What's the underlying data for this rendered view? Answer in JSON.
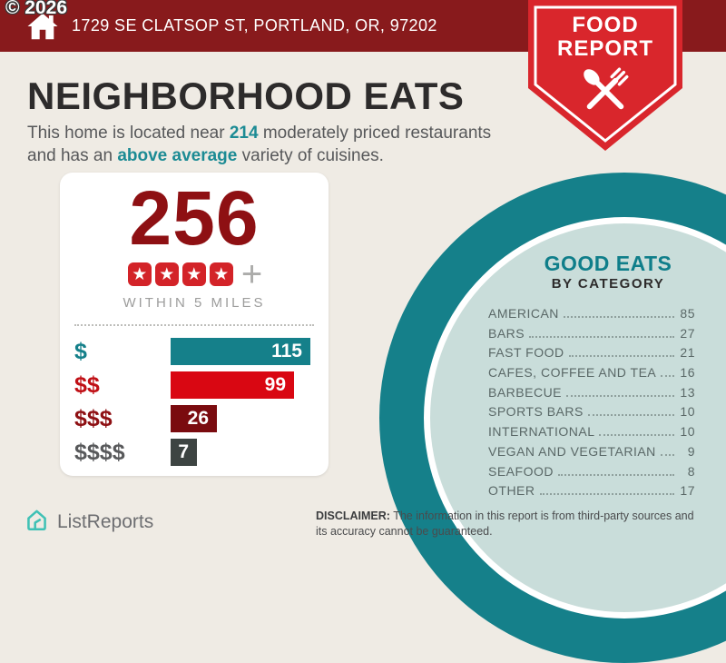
{
  "watermark": "© 2026",
  "header": {
    "address": "1729 SE CLATSOP ST, PORTLAND, OR, 97202"
  },
  "badge": {
    "line1": "FOOD",
    "line2": "REPORT"
  },
  "page": {
    "title": "NEIGHBORHOOD EATS",
    "subtitle_parts": {
      "pre": "This home is located near ",
      "count": "214",
      "mid": " moderately priced restaurants and has an ",
      "highlight": "above average",
      "post": " variety of cuisines."
    }
  },
  "summary": {
    "total": "256",
    "stars": 4,
    "star_glyph": "★",
    "plus": "+",
    "radius_label": "WITHIN 5 MILES"
  },
  "chart_data": [
    {
      "type": "bar",
      "orientation": "horizontal",
      "title": "Restaurants by price tier",
      "categories": [
        "$",
        "$$",
        "$$$",
        "$$$$"
      ],
      "values": [
        115,
        99,
        26,
        7
      ],
      "bar_colors": [
        "#15808A",
        "#D90712",
        "#7A0B0F",
        "#3D4442"
      ],
      "label_colors": [
        "#15808A",
        "#C01016",
        "#8E1013",
        "#58595B"
      ],
      "value_label_position": "inside-right",
      "xlim": [
        0,
        115
      ]
    },
    {
      "type": "table",
      "title": "GOOD EATS",
      "subtitle": "BY CATEGORY",
      "rows": [
        [
          "AMERICAN",
          85
        ],
        [
          "BARS",
          27
        ],
        [
          "FAST FOOD",
          21
        ],
        [
          "CAFES, COFFEE AND TEA",
          16
        ],
        [
          "BARBECUE",
          13
        ],
        [
          "SPORTS BARS",
          10
        ],
        [
          "INTERNATIONAL",
          10
        ],
        [
          "VEGAN AND VEGETARIAN",
          9
        ],
        [
          "SEAFOOD",
          8
        ],
        [
          "OTHER",
          17
        ]
      ]
    }
  ],
  "footer": {
    "brand": "ListReports",
    "disclaimer_label": "DISCLAIMER:",
    "disclaimer_text": " The information in this report is from third-party sources and its accuracy cannot be guaranteed."
  }
}
